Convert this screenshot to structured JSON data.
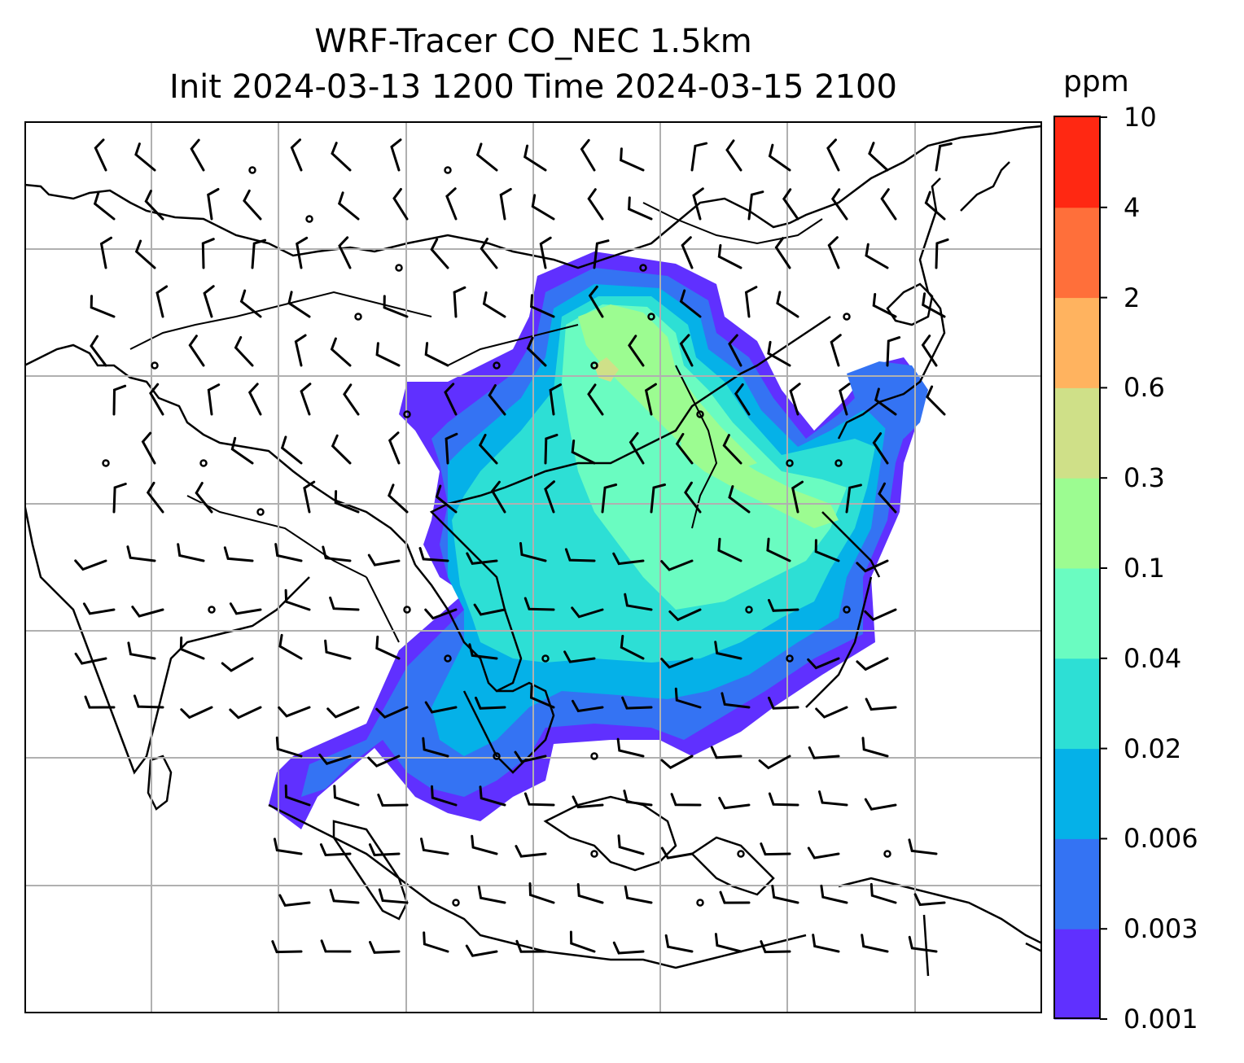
{
  "figure": {
    "title_line_1": "WRF-Tracer CO_NEC 1.5km",
    "title_line_2": "Init 2024-03-13 1200 Time 2024-03-15 2100"
  },
  "colorbar": {
    "unit": "ppm",
    "levels": [
      "0.001",
      "0.003",
      "0.006",
      "0.02",
      "0.04",
      "0.1",
      "0.3",
      "0.6",
      "2",
      "4",
      "10"
    ],
    "colors": [
      "#6030ff",
      "#3473f3",
      "#05b1e8",
      "#2ddfd5",
      "#6afcc1",
      "#9cfc91",
      "#cfe088",
      "#ffb35f",
      "#ff6f3a",
      "#ff2812"
    ]
  },
  "map": {
    "features": [
      "coastlines",
      "country-borders",
      "gridlines",
      "wind-barbs",
      "co-tracer-concentration"
    ],
    "plume_region_levels": [
      "0.001",
      "0.003",
      "0.006",
      "0.02",
      "0.04",
      "0.1",
      "0.3"
    ]
  }
}
